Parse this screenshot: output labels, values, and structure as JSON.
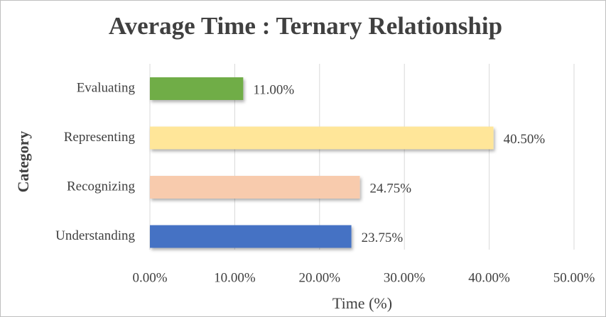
{
  "chart_data": {
    "type": "barh",
    "title": "Average Time : Ternary Relationship",
    "categories": [
      "Evaluating",
      "Representing",
      "Recognizing",
      "Understanding"
    ],
    "values": [
      11,
      40.5,
      24.75,
      23.75
    ],
    "value_labels": [
      "11.00%",
      "40.50%",
      "24.75%",
      "23.75%"
    ],
    "colors": [
      "#70ad47",
      "#ffe699",
      "#f8cbad",
      "#4472c4"
    ],
    "xlabel": "Time (%)",
    "ylabel": "Category",
    "xlim": [
      0,
      50
    ],
    "xticks": [
      {
        "value": 0,
        "label": "0.00%"
      },
      {
        "value": 10,
        "label": "10.00%"
      },
      {
        "value": 20,
        "label": "20.00%"
      },
      {
        "value": 30,
        "label": "30.00%"
      },
      {
        "value": 40,
        "label": "40.00%"
      },
      {
        "value": 50,
        "label": "50.00%"
      }
    ],
    "grid": true
  }
}
